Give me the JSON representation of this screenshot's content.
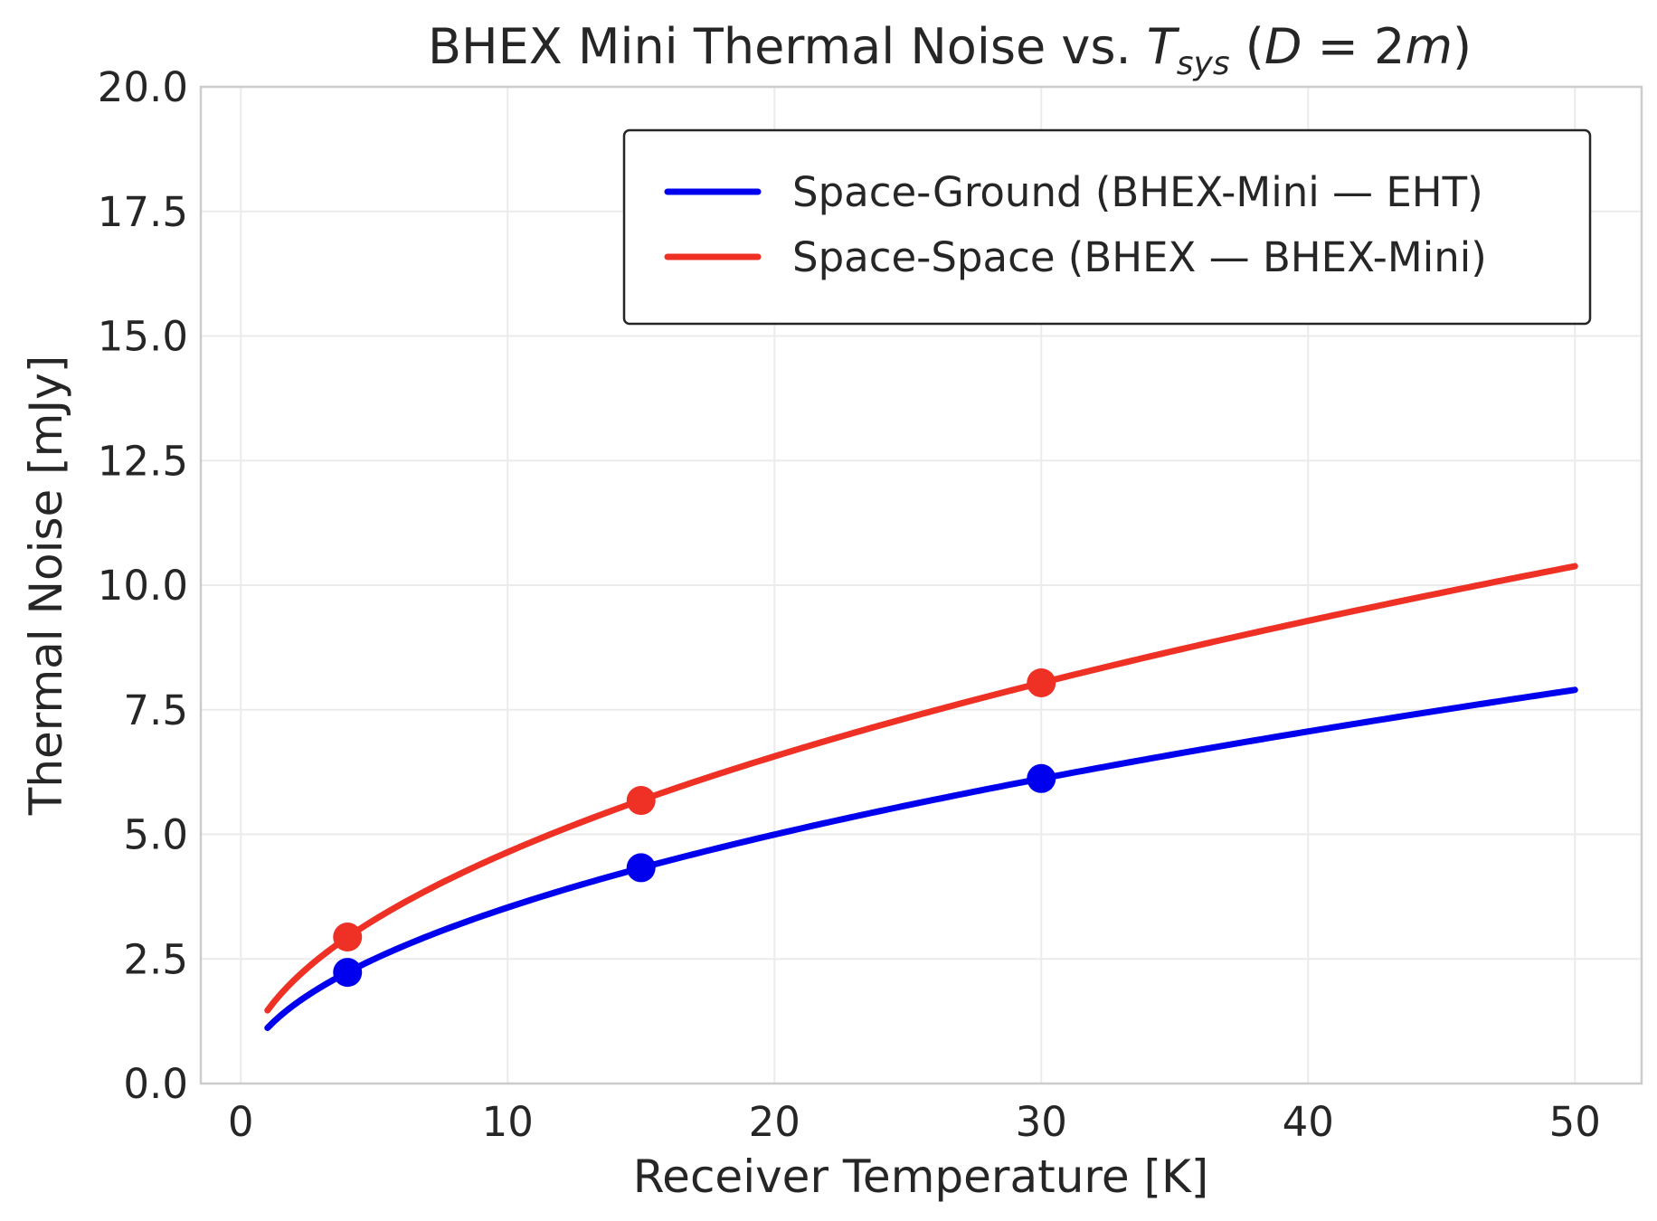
{
  "chart_data": {
    "type": "line",
    "title": {
      "main": "BHEX Mini Thermal Noise vs. ",
      "tsys_T": "T",
      "tsys_sub": "sys",
      "paren_open": " (",
      "D": "D",
      "eq": " = 2",
      "m": "m",
      "paren_close": ")"
    },
    "xlabel": "Receiver Temperature [K]",
    "ylabel": "Thermal Noise [mJy]",
    "xlim": [
      -1.5,
      52.5
    ],
    "ylim": [
      0,
      20
    ],
    "xticks": [
      0,
      10,
      20,
      30,
      40,
      50
    ],
    "xtick_labels": [
      "0",
      "10",
      "20",
      "30",
      "40",
      "50"
    ],
    "yticks": [
      0,
      2.5,
      5,
      7.5,
      10,
      12.5,
      15,
      17.5,
      20
    ],
    "ytick_labels": [
      "0.0",
      "2.5",
      "5.0",
      "7.5",
      "10.0",
      "12.5",
      "15.0",
      "17.5",
      "20.0"
    ],
    "grid": true,
    "legend_position": "top-right",
    "series": [
      {
        "name": "Space-Ground (BHEX-Mini — EHT)",
        "color": "#0000ee",
        "coefficient": 1.117,
        "exponent": 0.5,
        "x_range": [
          1,
          50
        ],
        "markers": [
          {
            "x": 4,
            "y": 2.23
          },
          {
            "x": 15,
            "y": 4.33
          },
          {
            "x": 30,
            "y": 6.12
          }
        ]
      },
      {
        "name": "Space-Space (BHEX — BHEX-Mini)",
        "color": "#ee3124",
        "coefficient": 1.468,
        "exponent": 0.5,
        "x_range": [
          1,
          50
        ],
        "markers": [
          {
            "x": 4,
            "y": 2.94
          },
          {
            "x": 15,
            "y": 5.68
          },
          {
            "x": 30,
            "y": 8.04
          }
        ]
      }
    ]
  }
}
